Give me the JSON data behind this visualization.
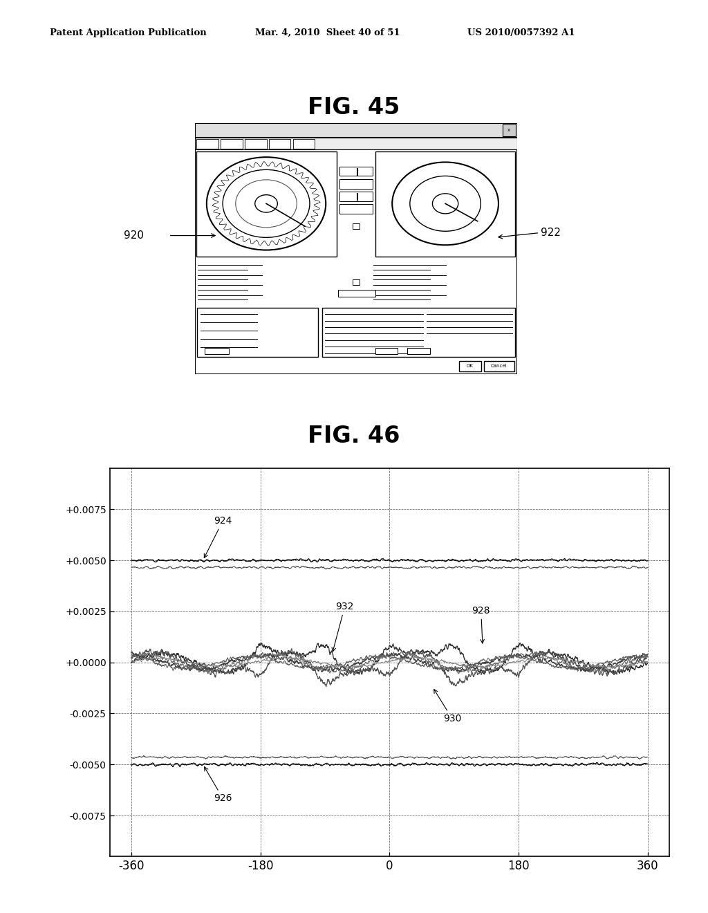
{
  "header_left": "Patent Application Publication",
  "header_mid": "Mar. 4, 2010  Sheet 40 of 51",
  "header_right": "US 2010/0057392 A1",
  "fig45_title": "FIG. 45",
  "fig46_title": "FIG. 46",
  "label_920": "920",
  "label_922": "922",
  "label_924": "924",
  "label_926": "926",
  "label_928": "928",
  "label_930": "930",
  "label_932": "932",
  "yticks": [
    "+0.0075",
    "+0.0050",
    "+0.0025",
    "+0.0000",
    "-0.0025",
    "-0.0050",
    "-0.0075"
  ],
  "ytick_vals": [
    0.0075,
    0.005,
    0.0025,
    0.0,
    -0.0025,
    -0.005,
    -0.0075
  ],
  "xticks": [
    -360,
    -180,
    0,
    180,
    360
  ],
  "xlim": [
    -390,
    390
  ],
  "ylim": [
    -0.0095,
    0.0095
  ],
  "background_color": "#ffffff"
}
